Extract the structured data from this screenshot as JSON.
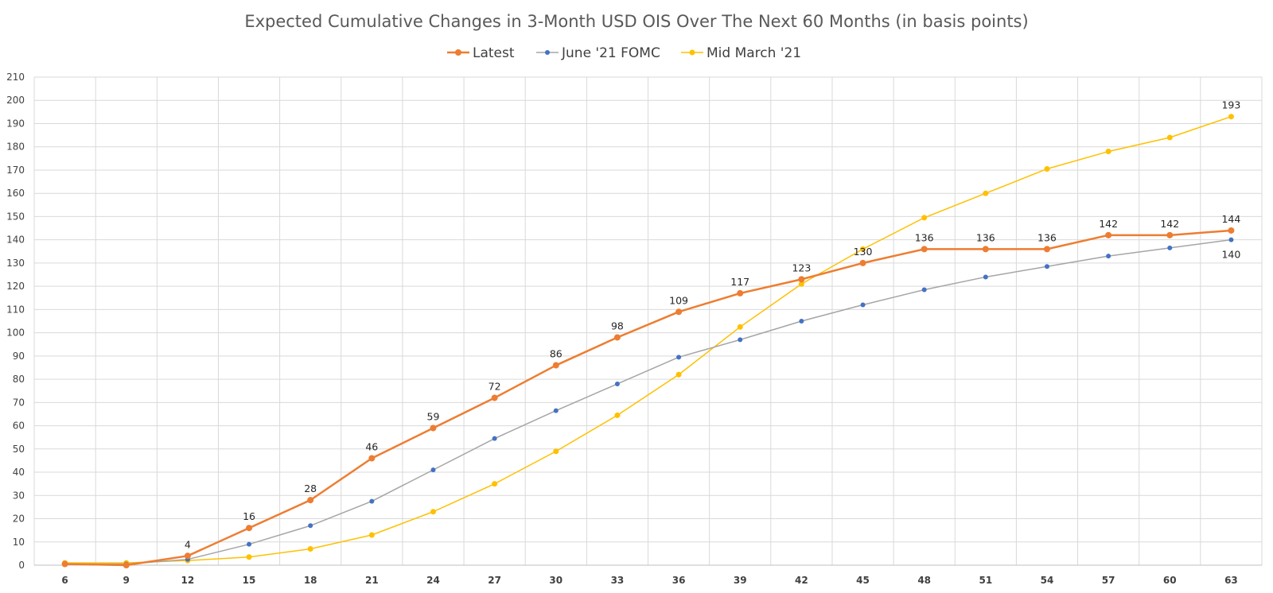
{
  "chart_data": {
    "type": "line",
    "title": "Expected Cumulative Changes in 3-Month USD OIS Over The Next 60 Months (in basis points)",
    "xlabel": "",
    "ylabel": "",
    "x": [
      "6",
      "9",
      "12",
      "15",
      "18",
      "21",
      "24",
      "27",
      "30",
      "33",
      "36",
      "39",
      "42",
      "45",
      "48",
      "51",
      "54",
      "57",
      "60",
      "63"
    ],
    "ylim": [
      0,
      210
    ],
    "yticks": [
      0,
      10,
      20,
      30,
      40,
      50,
      60,
      70,
      80,
      90,
      100,
      110,
      120,
      130,
      140,
      150,
      160,
      170,
      180,
      190,
      200,
      210
    ],
    "grid": true,
    "legend_position": "top",
    "series": [
      {
        "name": "Latest",
        "color": "#ED7D31",
        "values": [
          0.5,
          0,
          4,
          16,
          28,
          46,
          59,
          72,
          86,
          98,
          109,
          117,
          123,
          130,
          136,
          136,
          136,
          142,
          142,
          144
        ],
        "data_labels": [
          "",
          "",
          "4",
          "16",
          "28",
          "46",
          "59",
          "72",
          "86",
          "98",
          "109",
          "117",
          "123",
          "130",
          "136",
          "136",
          "136",
          "142",
          "142",
          "144"
        ]
      },
      {
        "name": "June '21 FOMC",
        "color": "#4472C4",
        "line_color": "#A5A5A5",
        "values": [
          0.5,
          0.5,
          2.5,
          9,
          17,
          27.5,
          41,
          54.5,
          66.5,
          78,
          89.5,
          97,
          105,
          112,
          118.5,
          124,
          128.5,
          133,
          136.5,
          140
        ],
        "data_labels": [
          "",
          "",
          "",
          "",
          "",
          "",
          "",
          "",
          "",
          "",
          "",
          "",
          "",
          "",
          "",
          "",
          "",
          "",
          "",
          "140"
        ]
      },
      {
        "name": "Mid March '21",
        "color": "#FFC000",
        "line_color": "#FFC000",
        "values": [
          1,
          1,
          2,
          3.5,
          7,
          13,
          23,
          35,
          49,
          64.5,
          82,
          102.5,
          121,
          136,
          149.5,
          160,
          170.5,
          178,
          184,
          193
        ],
        "data_labels": [
          "",
          "",
          "",
          "",
          "",
          "",
          "",
          "",
          "",
          "",
          "",
          "",
          "",
          "",
          "",
          "",
          "",
          "",
          "",
          "193"
        ]
      }
    ]
  }
}
